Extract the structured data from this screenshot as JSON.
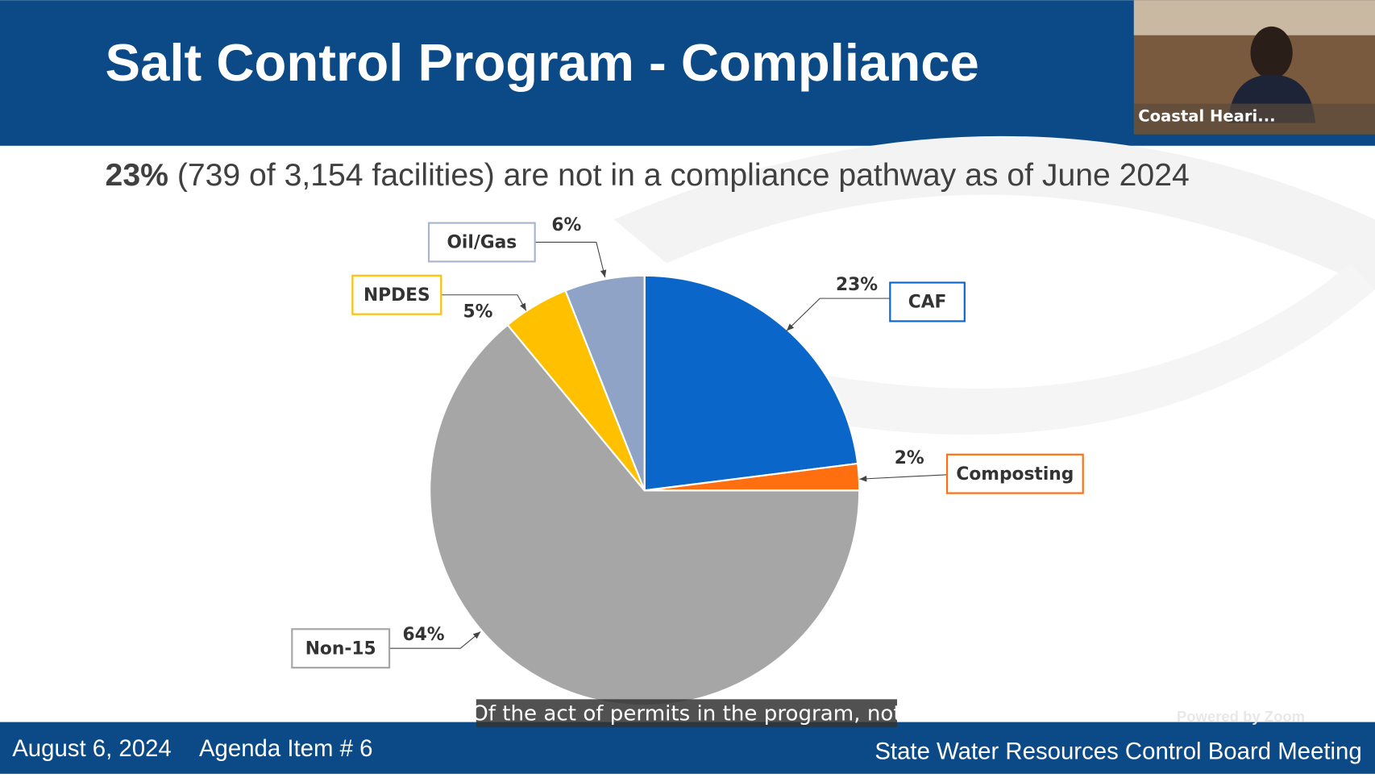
{
  "header": {
    "title": "Salt Control Program - Compliance"
  },
  "slide": {
    "summary_highlight": "23%",
    "summary_text": "(739 of 3,154 facilities) are not in a compliance pathway as of June 2024"
  },
  "chart_data": {
    "type": "pie",
    "categories": [
      "CAF",
      "Composting",
      "Non-15",
      "NPDES",
      "Oil/Gas"
    ],
    "values": [
      23,
      2,
      64,
      5,
      6
    ],
    "value_labels": [
      "23%",
      "2%",
      "64%",
      "5%",
      "6%"
    ],
    "colors": [
      "#0a66c8",
      "#ff6f0f",
      "#a6a6a6",
      "#ffc000",
      "#8fa3c6"
    ],
    "label_borders": [
      "#0a66c8",
      "#ff6f0f",
      "#a6a6a6",
      "#ffc000",
      "#a9b4d2"
    ]
  },
  "caption": "Of the act of permits in the program, not",
  "footer": {
    "date": "August 6, 2024",
    "agenda": "Agenda Item # 6",
    "meeting": "State Water Resources Control Board Meeting"
  },
  "video": {
    "participant": "Coastal Heari...",
    "watermark": "Powered by Zoom"
  }
}
